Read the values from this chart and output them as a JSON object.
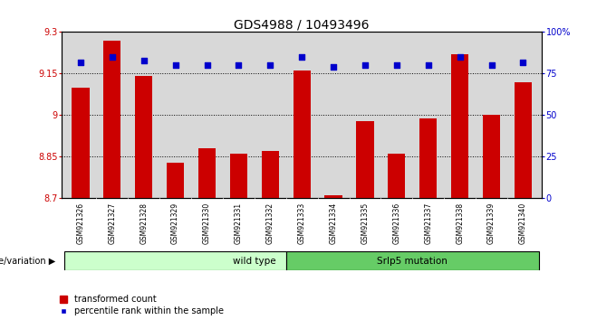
{
  "title": "GDS4988 / 10493496",
  "samples": [
    "GSM921326",
    "GSM921327",
    "GSM921328",
    "GSM921329",
    "GSM921330",
    "GSM921331",
    "GSM921332",
    "GSM921333",
    "GSM921334",
    "GSM921335",
    "GSM921336",
    "GSM921337",
    "GSM921338",
    "GSM921339",
    "GSM921340"
  ],
  "bar_values": [
    9.1,
    9.27,
    9.14,
    8.83,
    8.88,
    8.86,
    8.87,
    9.16,
    8.71,
    8.98,
    8.86,
    8.99,
    9.22,
    9.0,
    9.12
  ],
  "percentile_values": [
    82,
    85,
    83,
    80,
    80,
    80,
    80,
    85,
    79,
    80,
    80,
    80,
    85,
    80,
    82
  ],
  "bar_color": "#cc0000",
  "percentile_color": "#0000cc",
  "ymin": 8.7,
  "ymax": 9.3,
  "yticks": [
    8.7,
    8.85,
    9.0,
    9.15,
    9.3
  ],
  "ytick_labels": [
    "8.7",
    "8.85",
    "9",
    "9.15",
    "9.3"
  ],
  "right_yticks": [
    0,
    25,
    50,
    75,
    100
  ],
  "right_ytick_labels": [
    "0",
    "25",
    "50",
    "75",
    "100%"
  ],
  "grid_values": [
    8.85,
    9.0,
    9.15
  ],
  "wild_type_label": "wild type",
  "mutation_label": "Srlp5 mutation",
  "group_label": "genotype/variation",
  "legend_bar_label": "transformed count",
  "legend_dot_label": "percentile rank within the sample",
  "plot_bg_color": "#d8d8d8",
  "wild_type_bg": "#ccffcc",
  "mutation_bg": "#66cc66",
  "title_fontsize": 10,
  "tick_fontsize": 7,
  "bar_width": 0.55,
  "wild_type_count": 7,
  "mutation_count": 8
}
